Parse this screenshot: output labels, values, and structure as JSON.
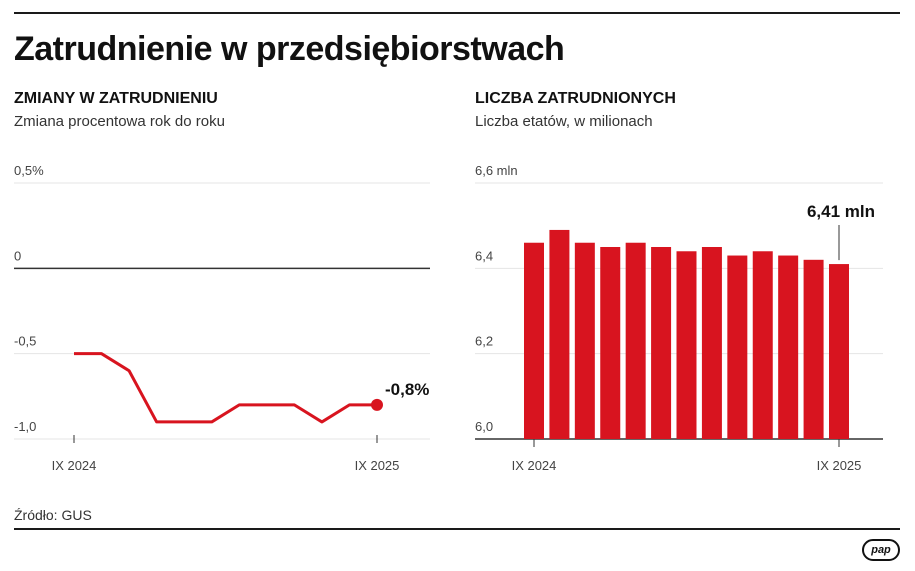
{
  "title": "Zatrudnienie w przedsiębiorstwach",
  "source": "Źródło: GUS",
  "logo_text": "pap",
  "colors": {
    "accent": "#d8141f",
    "text": "#111111",
    "grid": "#e4e4e4",
    "axis": "#333333"
  },
  "chart_data": [
    {
      "type": "line",
      "title": "ZMIANY W ZATRUDNIENIU",
      "subtitle": "Zmiana procentowa rok do roku",
      "unit": "%",
      "x_tick_labels": [
        "IX 2024",
        "IX 2025"
      ],
      "y_ticks": [
        0.5,
        0,
        -0.5,
        -1.0
      ],
      "y_tick_labels": [
        "0,5%",
        "0",
        "-0,5",
        "-1,0"
      ],
      "ylim": [
        -1.0,
        0.5
      ],
      "values": [
        -0.5,
        -0.5,
        -0.6,
        -0.9,
        -0.9,
        -0.9,
        -0.8,
        -0.8,
        -0.8,
        -0.9,
        -0.8,
        -0.8
      ],
      "last_label": "-0,8%",
      "grid": true
    },
    {
      "type": "bar",
      "title": "LICZBA ZATRUDNIONYCH",
      "subtitle": "Liczba etatów, w milionach",
      "unit": "mln",
      "x_tick_labels": [
        "IX 2024",
        "IX 2025"
      ],
      "y_ticks": [
        6.6,
        6.4,
        6.2,
        6.0
      ],
      "y_tick_labels": [
        "6,6 mln",
        "6,4",
        "6,2",
        "6,0"
      ],
      "ylim": [
        6.0,
        6.6
      ],
      "values": [
        6.46,
        6.49,
        6.46,
        6.45,
        6.46,
        6.45,
        6.44,
        6.45,
        6.43,
        6.44,
        6.43,
        6.42,
        6.41
      ],
      "last_label": "6,41 mln",
      "grid": true
    }
  ]
}
